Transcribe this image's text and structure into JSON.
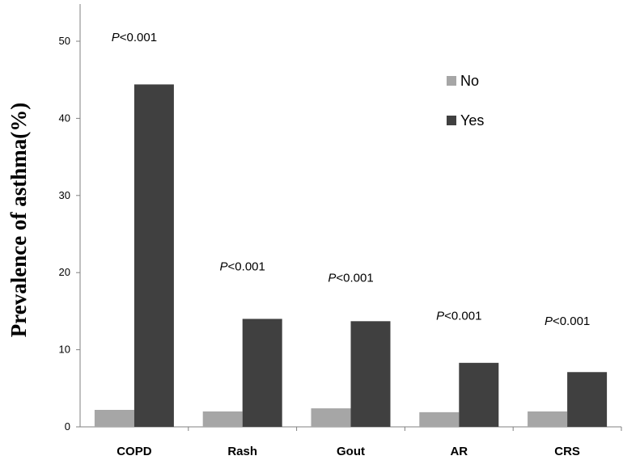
{
  "chart_data": {
    "type": "bar",
    "title": "",
    "xlabel": "",
    "ylabel": "Prevalence of asthma(%)",
    "ylim": [
      0,
      55
    ],
    "yticks": [
      0,
      10,
      20,
      30,
      40,
      50
    ],
    "grid": false,
    "legend_position": "top-right",
    "categories": [
      "COPD",
      "Rash",
      "Gout",
      "AR",
      "CRS"
    ],
    "series": [
      {
        "name": "No",
        "color": "#a6a6a6",
        "values": [
          2.2,
          2.0,
          2.4,
          1.9,
          2.0
        ]
      },
      {
        "name": "Yes",
        "color": "#404040",
        "values": [
          44.4,
          14.0,
          13.7,
          8.3,
          7.1
        ]
      }
    ],
    "annotations": [
      {
        "category": "COPD",
        "p_italic": "P",
        "p_rest": "<0.001",
        "y": 50
      },
      {
        "category": "Rash",
        "p_italic": "P",
        "p_rest": "<0.001",
        "y": 20.3
      },
      {
        "category": "Gout",
        "p_italic": "P",
        "p_rest": "<0.001",
        "y": 18.8
      },
      {
        "category": "AR",
        "p_italic": "P",
        "p_rest": "<0.001",
        "y": 13.9
      },
      {
        "category": "CRS",
        "p_italic": "P",
        "p_rest": "<0.001",
        "y": 13.2
      }
    ]
  }
}
